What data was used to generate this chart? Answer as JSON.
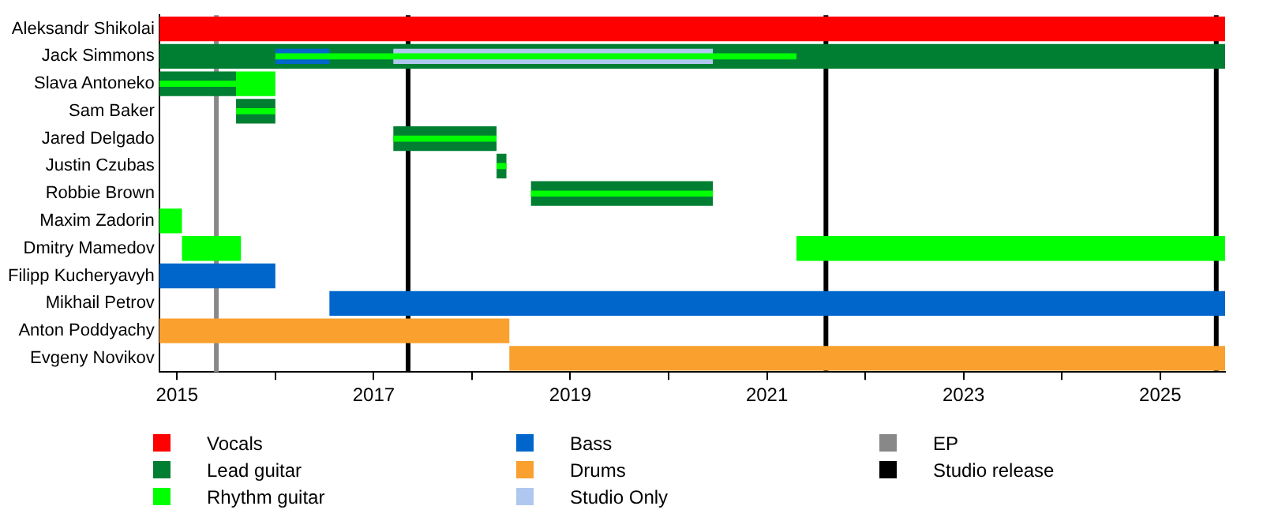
{
  "chart_data": {
    "type": "bar",
    "orientation": "horizontal",
    "categories": [
      "Aleksandr Shikolai",
      "Jack Simmons",
      "Slava Antoneko",
      "Sam Baker",
      "Jared Delgado",
      "Justin Czubas",
      "Robbie Brown",
      "Maxim Zadorin",
      "Dmitry Mamedov",
      "Filipp Kucheryavyh",
      "Mikhail Petrov",
      "Anton Poddyachy",
      "Evgeny Novikov"
    ],
    "xlim": [
      2014.82,
      2025.66
    ],
    "xticks": [
      2015,
      {
        "value": 2016,
        "label": null
      },
      2017,
      {
        "value": 2018,
        "label": null
      },
      2019,
      {
        "value": 2020,
        "label": null
      },
      2021,
      {
        "value": 2022,
        "label": null
      },
      2023,
      {
        "value": 2024,
        "label": null
      },
      2025
    ],
    "series": [
      {
        "name": "Vocals",
        "color": "#ff0000",
        "base": [
          2014.82,
          null,
          null,
          null,
          null,
          null,
          null,
          null,
          null,
          null,
          null,
          null,
          null
        ],
        "values": [
          10.84,
          null,
          null,
          null,
          null,
          null,
          null,
          null,
          null,
          null,
          null,
          null,
          null
        ]
      },
      {
        "name": "Lead guitar",
        "color": "#007f33",
        "base": [
          null,
          2014.82,
          2014.82,
          2015.6,
          2017.2,
          2018.25,
          2018.6,
          null,
          null,
          null,
          null,
          null,
          null
        ],
        "values": [
          null,
          10.84,
          0.78,
          0.4,
          1.05,
          0.1,
          1.85,
          null,
          null,
          null,
          null,
          null,
          null
        ]
      },
      {
        "name": "Rhythm guitar",
        "color": "#00ff00",
        "base": [
          null,
          null,
          2015.6,
          null,
          null,
          null,
          null,
          2014.82,
          2015.05,
          null,
          null,
          null,
          null
        ],
        "values": [
          null,
          null,
          0.4,
          null,
          null,
          null,
          null,
          0.23,
          0.6,
          null,
          null,
          null,
          null
        ]
      },
      {
        "color": "#00ff00",
        "base": [
          null,
          null,
          null,
          null,
          null,
          null,
          null,
          null,
          2021.3,
          null,
          null,
          null,
          null
        ],
        "values": [
          null,
          null,
          null,
          null,
          null,
          null,
          null,
          null,
          4.36,
          null,
          null,
          null,
          null
        ]
      },
      {
        "name": "Bass",
        "color": "#0066cc",
        "base": [
          null,
          null,
          null,
          null,
          null,
          null,
          null,
          null,
          null,
          2014.82,
          2016.55,
          null,
          null
        ],
        "values": [
          null,
          null,
          null,
          null,
          null,
          null,
          null,
          null,
          null,
          1.18,
          9.11,
          null,
          null
        ]
      },
      {
        "name": "Drums",
        "color": "#f9a02f",
        "base": [
          null,
          null,
          null,
          null,
          null,
          null,
          null,
          null,
          null,
          null,
          null,
          2014.82,
          2018.38
        ],
        "values": [
          null,
          null,
          null,
          null,
          null,
          null,
          null,
          null,
          null,
          null,
          null,
          3.56,
          7.28
        ]
      },
      {
        "color": "#0066cc",
        "base": [
          null,
          2016.0,
          null,
          null,
          null,
          null,
          null,
          null,
          null,
          null,
          null,
          null,
          null
        ],
        "values": [
          null,
          0.55,
          null,
          null,
          null,
          null,
          null,
          null,
          null,
          null,
          null,
          null,
          null
        ]
      },
      {
        "name": "Studio Only",
        "color": "#b0c8f0",
        "base": [
          null,
          2017.2,
          null,
          null,
          null,
          null,
          null,
          null,
          null,
          null,
          null,
          null,
          null
        ],
        "values": [
          null,
          3.25,
          null,
          null,
          null,
          null,
          null,
          null,
          null,
          null,
          null,
          null,
          null
        ]
      },
      {
        "color": "#00ff00",
        "base": [
          null,
          2016.0,
          2014.82,
          2015.6,
          2017.2,
          2018.25,
          2018.6,
          null,
          null,
          null,
          null,
          null,
          null
        ],
        "values": [
          null,
          5.3,
          0.78,
          0.4,
          1.05,
          0.1,
          1.85,
          null,
          null,
          null,
          null,
          null,
          null
        ]
      }
    ],
    "ref_lines": [
      {
        "axis": "x",
        "value": 2015.4,
        "label": "EP",
        "color": "#888888"
      },
      {
        "axis": "x",
        "value": 2017.35,
        "label": "Studio release",
        "color": "#000000"
      },
      {
        "axis": "x",
        "value": 2021.6,
        "color": "#000000"
      },
      {
        "axis": "x",
        "value": 2025.57,
        "color": "#000000"
      }
    ],
    "grid": false,
    "legend": "bottom"
  }
}
